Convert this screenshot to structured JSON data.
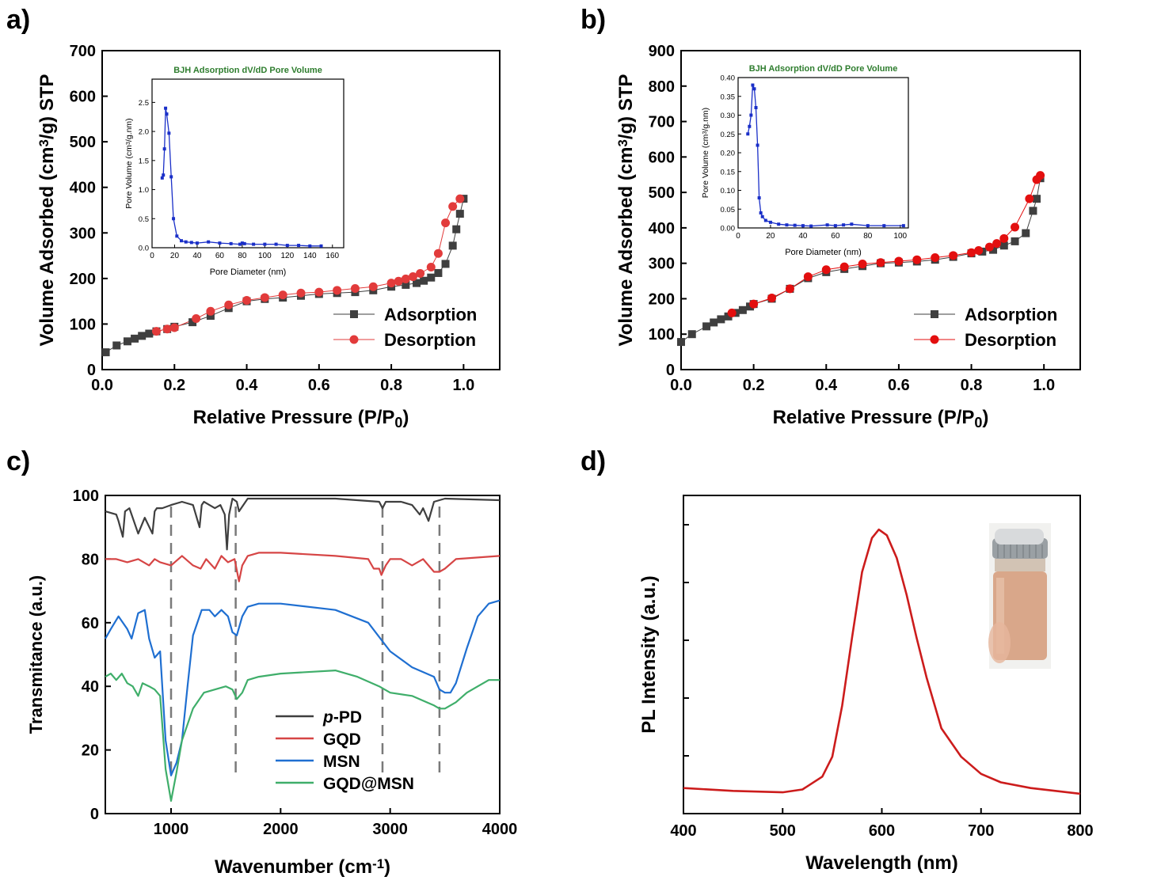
{
  "chart_data": [
    {
      "panel_label": "a)",
      "type": "scatter",
      "xlabel": "Relative Pressure (P/P0)",
      "ylabel": "Volume Adsorbed (cm3/g) STP",
      "xlim": [
        0,
        1.1
      ],
      "ylim": [
        0,
        700
      ],
      "xticks": [
        0.0,
        0.2,
        0.4,
        0.6,
        0.8,
        1.0
      ],
      "xtick_labels": [
        "0.0",
        "0.2",
        "0.4",
        "0.6",
        "0.8",
        "1.0"
      ],
      "yticks": [
        0,
        100,
        200,
        300,
        400,
        500,
        600,
        700
      ],
      "ytick_labels": [
        "0",
        "100",
        "200",
        "300",
        "400",
        "500",
        "600",
        "700"
      ],
      "legend_position": "bottom-right",
      "series": [
        {
          "name": "Adsorption",
          "color": "#3f3f3f",
          "marker": "square",
          "x": [
            0.01,
            0.04,
            0.07,
            0.09,
            0.11,
            0.13,
            0.15,
            0.18,
            0.2,
            0.25,
            0.3,
            0.35,
            0.4,
            0.45,
            0.5,
            0.55,
            0.6,
            0.65,
            0.7,
            0.75,
            0.8,
            0.84,
            0.87,
            0.89,
            0.91,
            0.93,
            0.95,
            0.97,
            0.98,
            0.99,
            1.0
          ],
          "y": [
            38,
            53,
            62,
            68,
            74,
            79,
            84,
            89,
            94,
            104,
            118,
            135,
            150,
            155,
            158,
            162,
            166,
            168,
            170,
            174,
            182,
            186,
            190,
            195,
            202,
            212,
            232,
            272,
            308,
            342,
            375
          ]
        },
        {
          "name": "Desorption",
          "color": "#e23b3b",
          "marker": "circle",
          "x": [
            0.15,
            0.18,
            0.2,
            0.26,
            0.3,
            0.35,
            0.4,
            0.45,
            0.5,
            0.55,
            0.6,
            0.65,
            0.7,
            0.75,
            0.8,
            0.82,
            0.84,
            0.86,
            0.88,
            0.91,
            0.93,
            0.95,
            0.97,
            0.99
          ],
          "y": [
            84,
            89,
            92,
            112,
            128,
            142,
            152,
            158,
            164,
            168,
            170,
            174,
            178,
            182,
            190,
            194,
            199,
            204,
            211,
            225,
            255,
            322,
            358,
            375
          ]
        }
      ],
      "inset": {
        "title": "BJH Adsorption dV/dD Pore Volume",
        "xlabel": "Pore Diameter (nm)",
        "ylabel": "Pore Volume (cm3/g.nm)",
        "xlim": [
          0,
          170
        ],
        "ylim": [
          0,
          2.9
        ],
        "xticks": [
          0,
          20,
          40,
          60,
          80,
          100,
          120,
          140,
          160
        ],
        "xtick_labels": [
          "0",
          "20",
          "40",
          "60",
          "80",
          "100",
          "120",
          "140",
          "160"
        ],
        "yticks": [
          0,
          0.5,
          1.0,
          1.5,
          2.0,
          2.5
        ],
        "ytick_labels": [
          "0.0",
          "0.5",
          "1.0",
          "1.5",
          "2.0",
          "2.5"
        ],
        "color": "#1a2fc8",
        "x": [
          9,
          10,
          11,
          12,
          13,
          15,
          17,
          19,
          22,
          26,
          30,
          35,
          40,
          50,
          60,
          70,
          78,
          80,
          82,
          90,
          100,
          110,
          120,
          130,
          140,
          150
        ],
        "y": [
          1.2,
          1.25,
          1.7,
          2.4,
          2.3,
          1.97,
          1.22,
          0.5,
          0.2,
          0.12,
          0.1,
          0.09,
          0.08,
          0.1,
          0.08,
          0.07,
          0.06,
          0.08,
          0.07,
          0.06,
          0.06,
          0.06,
          0.04,
          0.04,
          0.03,
          0.03
        ]
      }
    },
    {
      "panel_label": "b)",
      "type": "scatter",
      "xlabel": "Relative Pressure (P/P0)",
      "ylabel": "Volume Adsorbed (cm3/g) STP",
      "xlim": [
        0,
        1.1
      ],
      "ylim": [
        0,
        900
      ],
      "xticks": [
        0.0,
        0.2,
        0.4,
        0.6,
        0.8,
        1.0
      ],
      "xtick_labels": [
        "0.0",
        "0.2",
        "0.4",
        "0.6",
        "0.8",
        "1.0"
      ],
      "yticks": [
        0,
        100,
        200,
        300,
        400,
        500,
        600,
        700,
        800,
        900
      ],
      "ytick_labels": [
        "0",
        "100",
        "200",
        "300",
        "400",
        "500",
        "600",
        "700",
        "800",
        "900"
      ],
      "legend_position": "bottom-right",
      "series": [
        {
          "name": "Adsorption",
          "color": "#3f3f3f",
          "marker": "square",
          "x": [
            0.0,
            0.03,
            0.07,
            0.09,
            0.11,
            0.13,
            0.15,
            0.17,
            0.19,
            0.2,
            0.25,
            0.3,
            0.35,
            0.4,
            0.45,
            0.5,
            0.55,
            0.6,
            0.65,
            0.7,
            0.75,
            0.8,
            0.83,
            0.86,
            0.89,
            0.92,
            0.95,
            0.97,
            0.98,
            0.99
          ],
          "y": [
            78,
            100,
            122,
            133,
            142,
            150,
            160,
            168,
            178,
            185,
            200,
            228,
            258,
            275,
            284,
            292,
            300,
            302,
            305,
            310,
            318,
            328,
            333,
            338,
            350,
            362,
            385,
            448,
            482,
            540
          ]
        },
        {
          "name": "Desorption",
          "color": "#e30f0f",
          "marker": "circle",
          "x": [
            0.14,
            0.2,
            0.25,
            0.3,
            0.35,
            0.4,
            0.45,
            0.5,
            0.55,
            0.6,
            0.65,
            0.7,
            0.75,
            0.8,
            0.82,
            0.85,
            0.87,
            0.89,
            0.92,
            0.96,
            0.98,
            0.99
          ],
          "y": [
            160,
            185,
            202,
            228,
            262,
            282,
            290,
            298,
            302,
            306,
            310,
            316,
            322,
            330,
            336,
            346,
            356,
            370,
            402,
            482,
            536,
            548
          ]
        }
      ],
      "inset": {
        "title": "BJH Adsorption dV/dD Pore Volume",
        "xlabel": "Pore Diameter (nm)",
        "ylabel": "Pore Volume (cm3/g.nm)",
        "xlim": [
          0,
          105
        ],
        "ylim": [
          0,
          0.4
        ],
        "xticks": [
          0,
          20,
          40,
          60,
          80,
          100
        ],
        "xtick_labels": [
          "0",
          "20",
          "40",
          "60",
          "80",
          "100"
        ],
        "yticks": [
          0,
          0.05,
          0.1,
          0.15,
          0.2,
          0.25,
          0.3,
          0.35,
          0.4
        ],
        "ytick_labels": [
          "0.00",
          "0.05",
          "0.10",
          "0.15",
          "0.20",
          "0.25",
          "0.30",
          "0.35",
          "0.40"
        ],
        "color": "#1a2fc8",
        "x": [
          6,
          7,
          8,
          9,
          10,
          11,
          12,
          13,
          14,
          15,
          17,
          20,
          25,
          30,
          35,
          40,
          45,
          55,
          60,
          65,
          70,
          80,
          90,
          102
        ],
        "y": [
          0.25,
          0.27,
          0.3,
          0.38,
          0.37,
          0.32,
          0.22,
          0.08,
          0.04,
          0.03,
          0.02,
          0.015,
          0.01,
          0.008,
          0.007,
          0.006,
          0.005,
          0.008,
          0.006,
          0.008,
          0.01,
          0.006,
          0.006,
          0.006
        ]
      }
    },
    {
      "panel_label": "c)",
      "type": "line",
      "xlabel": "Wavenumber (cm-1)",
      "ylabel": "Transmitance (a.u.)",
      "xlim": [
        400,
        4000
      ],
      "ylim": [
        0,
        100
      ],
      "xticks": [
        1000,
        2000,
        3000,
        4000
      ],
      "xtick_labels": [
        "1000",
        "2000",
        "3000",
        "4000"
      ],
      "yticks": [
        0,
        20,
        40,
        60,
        80,
        100
      ],
      "ytick_labels": [
        "0",
        "20",
        "40",
        "60",
        "80",
        "100"
      ],
      "reference_lines_x": [
        1000,
        1590,
        2930,
        3450
      ],
      "legend_position": "center",
      "series": [
        {
          "name": "p-PD",
          "color": "#3f3f3f",
          "x": [
            400,
            500,
            520,
            560,
            580,
            620,
            700,
            760,
            830,
            850,
            870,
            920,
            1000,
            1100,
            1200,
            1260,
            1280,
            1300,
            1400,
            1450,
            1490,
            1510,
            1530,
            1560,
            1600,
            1620,
            1700,
            1800,
            2000,
            2500,
            2900,
            2930,
            2960,
            3100,
            3200,
            3270,
            3300,
            3350,
            3400,
            3500,
            4000
          ],
          "y": [
            95,
            94,
            92,
            87,
            95,
            96,
            88,
            93,
            88,
            95,
            96,
            96,
            97,
            98,
            97,
            90,
            97,
            98,
            96,
            97,
            94,
            83,
            94,
            99,
            98,
            95,
            99,
            99,
            99,
            99,
            98,
            96,
            98,
            98,
            97,
            94,
            96,
            92,
            98,
            99,
            98.5
          ]
        },
        {
          "name": "GQD",
          "color": "#d64545",
          "x": [
            400,
            500,
            600,
            700,
            800,
            850,
            900,
            1000,
            1100,
            1200,
            1270,
            1320,
            1400,
            1460,
            1520,
            1580,
            1620,
            1650,
            1700,
            1800,
            2000,
            2500,
            2800,
            2850,
            2900,
            2920,
            2960,
            3000,
            3100,
            3200,
            3300,
            3400,
            3450,
            3500,
            3600,
            4000
          ],
          "y": [
            80,
            80,
            79,
            80,
            78,
            80,
            79,
            78,
            81,
            78,
            77,
            80,
            77,
            81,
            79,
            80,
            73,
            78,
            81,
            82,
            82,
            81,
            80,
            77,
            77,
            75,
            78,
            80,
            80,
            78,
            80,
            76,
            76,
            77,
            80,
            81
          ]
        },
        {
          "name": "MSN",
          "color": "#1f6fd1",
          "x": [
            400,
            450,
            520,
            600,
            640,
            700,
            760,
            800,
            850,
            900,
            950,
            1000,
            1050,
            1100,
            1150,
            1200,
            1280,
            1350,
            1400,
            1460,
            1520,
            1560,
            1600,
            1650,
            1700,
            1800,
            2000,
            2500,
            2800,
            3000,
            3200,
            3400,
            3450,
            3500,
            3550,
            3600,
            3700,
            3800,
            3900,
            4000
          ],
          "y": [
            55,
            58,
            62,
            58,
            55,
            63,
            64,
            55,
            49,
            51,
            23,
            12,
            16,
            23,
            40,
            56,
            64,
            64,
            62,
            64,
            62,
            57,
            56,
            62,
            65,
            66,
            66,
            64,
            60,
            51,
            46,
            43,
            39,
            38,
            38,
            41,
            52,
            62,
            66,
            67
          ]
        },
        {
          "name": "GQD@MSN",
          "color": "#3fae6a",
          "x": [
            400,
            450,
            500,
            550,
            600,
            650,
            700,
            740,
            800,
            850,
            900,
            950,
            1000,
            1050,
            1100,
            1200,
            1300,
            1400,
            1500,
            1560,
            1600,
            1650,
            1700,
            1800,
            2000,
            2500,
            2700,
            2900,
            3000,
            3200,
            3400,
            3450,
            3500,
            3600,
            3700,
            3800,
            3900,
            4000
          ],
          "y": [
            43,
            44,
            42,
            44,
            41,
            40,
            37,
            41,
            40,
            39,
            37,
            14,
            4,
            13,
            23,
            33,
            38,
            39,
            40,
            39,
            36,
            38,
            42,
            43,
            44,
            45,
            43,
            40,
            38,
            37,
            34,
            33,
            33,
            35,
            38,
            40,
            42,
            42
          ]
        }
      ]
    },
    {
      "panel_label": "d)",
      "type": "line",
      "xlabel": "Wavelength (nm)",
      "ylabel": "PL Intensity (a.u.)",
      "xlim": [
        400,
        800
      ],
      "xticks": [
        400,
        500,
        600,
        700,
        800
      ],
      "xtick_labels": [
        "400",
        "500",
        "600",
        "700",
        "800"
      ],
      "y_tick_labels_shown": false,
      "series": [
        {
          "name": "",
          "color": "#cc1c1c",
          "x": [
            400,
            450,
            500,
            520,
            540,
            550,
            560,
            570,
            580,
            590,
            597,
            605,
            615,
            625,
            635,
            645,
            660,
            680,
            700,
            720,
            750,
            800
          ],
          "y": [
            0.09,
            0.08,
            0.075,
            0.085,
            0.13,
            0.2,
            0.38,
            0.62,
            0.85,
            0.97,
            1.0,
            0.98,
            0.9,
            0.77,
            0.62,
            0.48,
            0.3,
            0.2,
            0.14,
            0.11,
            0.09,
            0.07
          ]
        }
      ],
      "inset_photo": "vial-photo"
    }
  ]
}
